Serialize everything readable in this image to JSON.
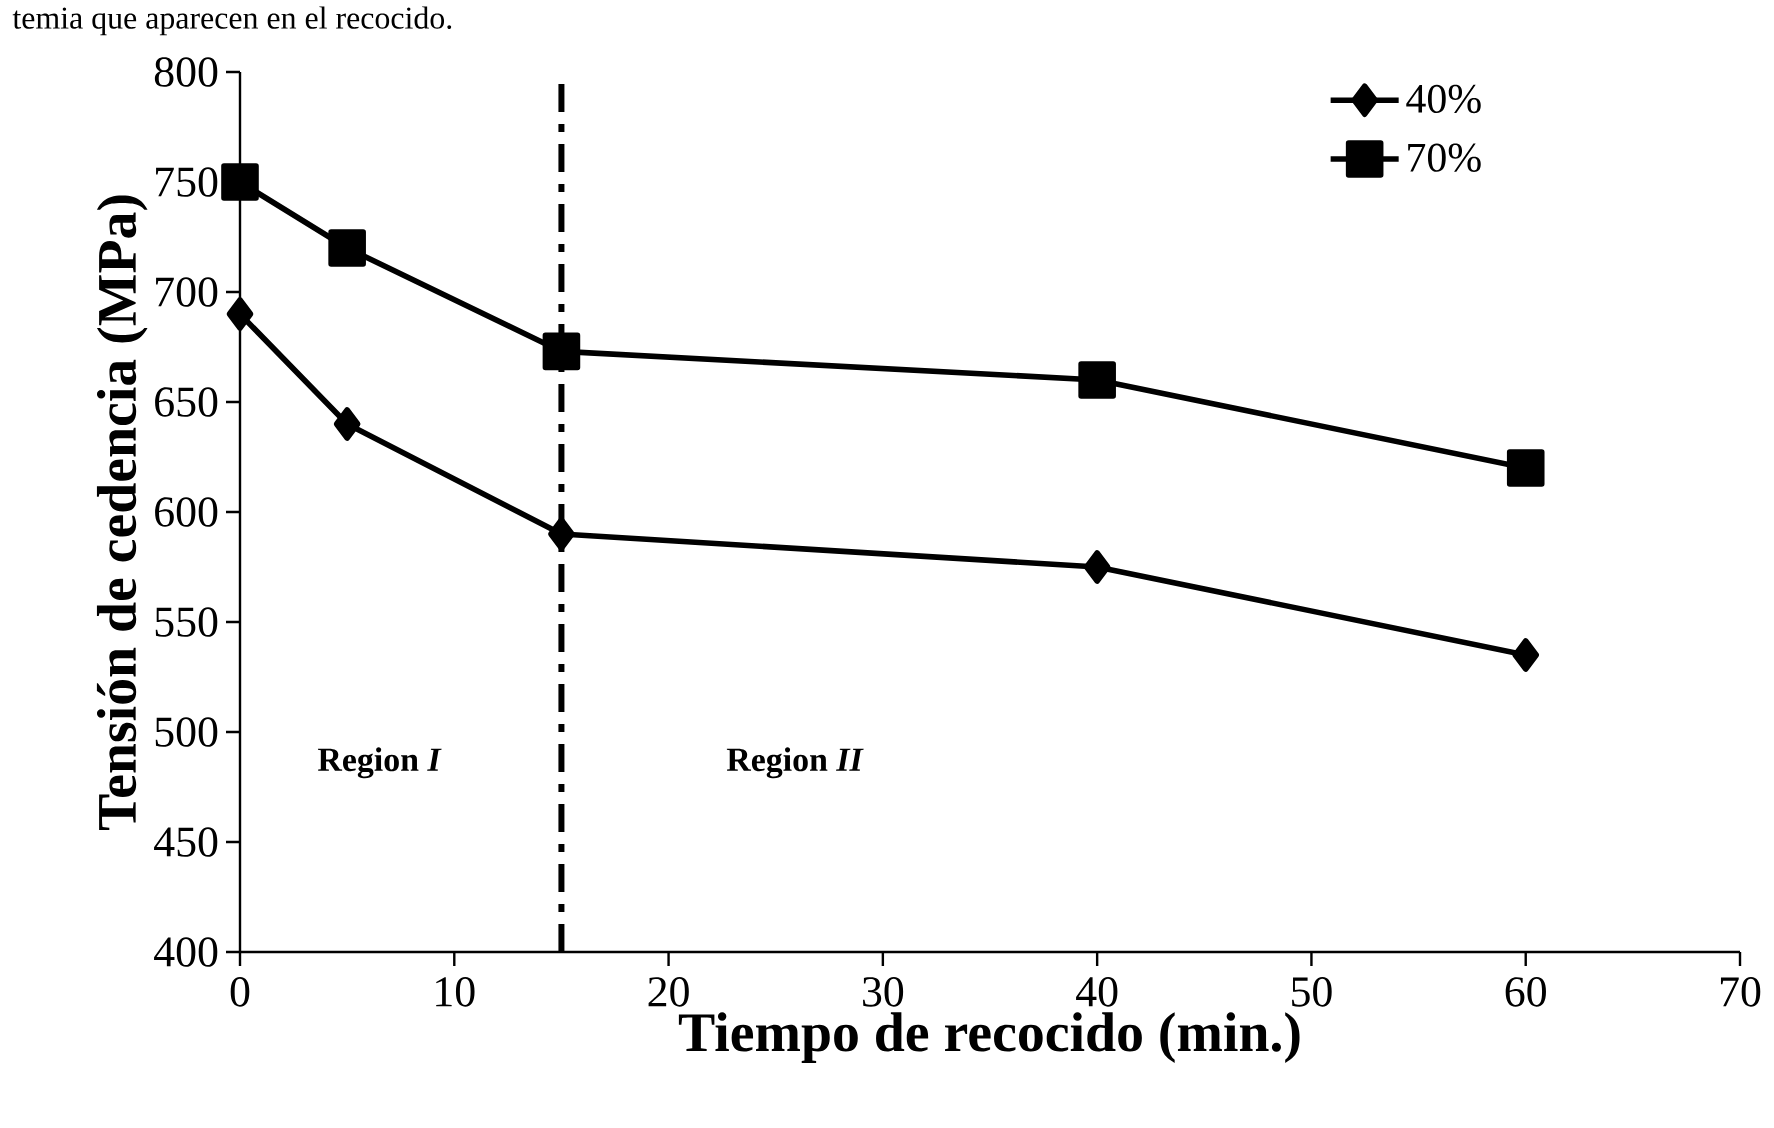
{
  "chart_data": {
    "type": "line",
    "xlabel": "Tiempo de recocido (min.)",
    "ylabel": "Tensión de cedencia (MPa)",
    "x": [
      0,
      5,
      15,
      40,
      60
    ],
    "series": [
      {
        "name": "40%",
        "color": "#000000",
        "marker": "diamond",
        "values": [
          690,
          640,
          590,
          575,
          535
        ]
      },
      {
        "name": "70%",
        "color": "#000000",
        "marker": "square",
        "values": [
          750,
          720,
          673,
          660,
          620
        ]
      }
    ],
    "xlim": [
      0,
      70
    ],
    "xticks": [
      0,
      10,
      20,
      30,
      40,
      50,
      60,
      70
    ],
    "ylim": [
      400,
      800
    ],
    "yticks": [
      400,
      450,
      500,
      550,
      600,
      650,
      700,
      750,
      800
    ],
    "legend": "top right",
    "ref_lines": [
      {
        "axis": "x",
        "value": 15,
        "line_style": "dashdot",
        "color": "#000000"
      }
    ],
    "annotations": [
      "temia que aparecen en el recocido.",
      "Region *I*",
      "Region *II*"
    ]
  }
}
